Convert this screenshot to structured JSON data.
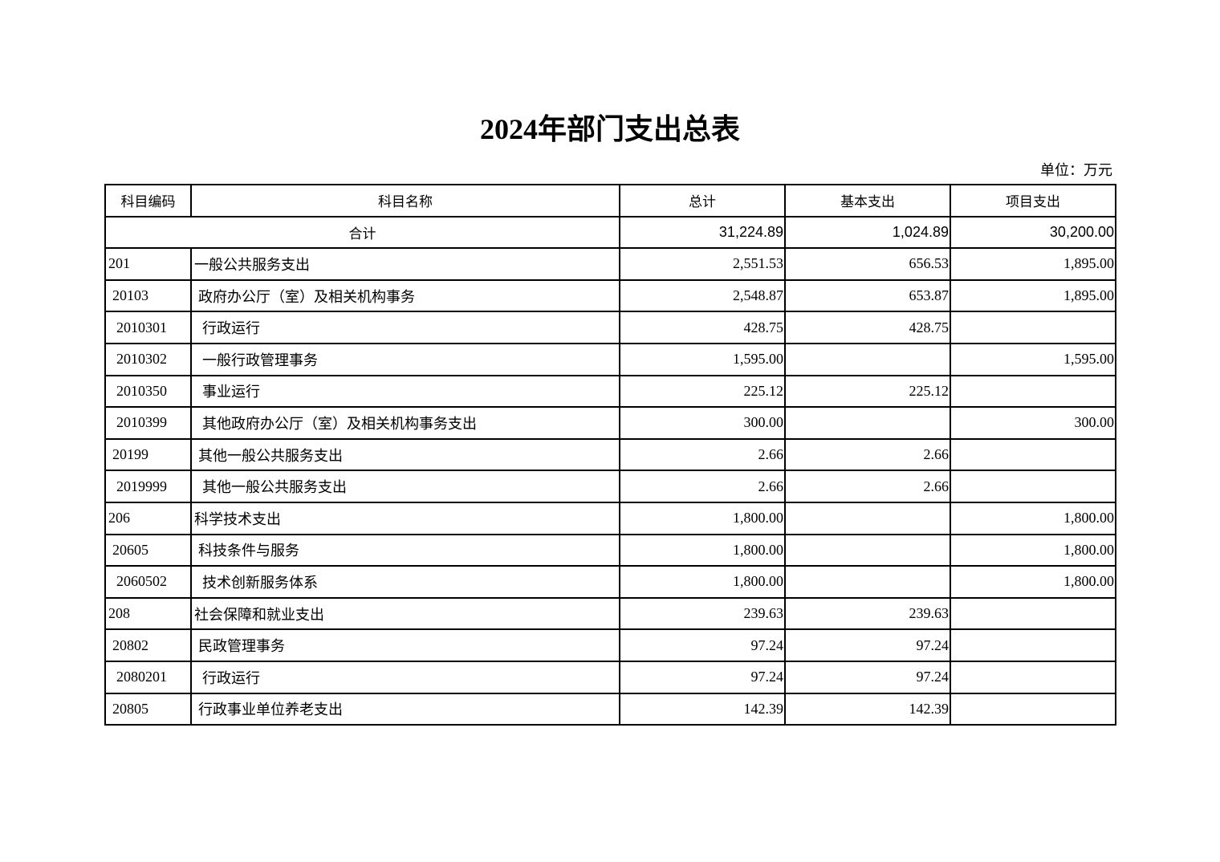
{
  "title": "2024年部门支出总表",
  "unit": "单位：万元",
  "headers": [
    "科目编码",
    "科目名称",
    "总计",
    "基本支出",
    "项目支出"
  ],
  "total": {
    "label": "合计",
    "total": "31,224.89",
    "basic": "1,024.89",
    "project": "30,200.00"
  },
  "rows": [
    {
      "level": 1,
      "code": "201",
      "name": "一般公共服务支出",
      "total": "2,551.53",
      "basic": "656.53",
      "project": "1,895.00"
    },
    {
      "level": 2,
      "code": "20103",
      "name": "政府办公厅（室）及相关机构事务",
      "total": "2,548.87",
      "basic": "653.87",
      "project": "1,895.00"
    },
    {
      "level": 3,
      "code": "2010301",
      "name": "行政运行",
      "total": "428.75",
      "basic": "428.75",
      "project": ""
    },
    {
      "level": 3,
      "code": "2010302",
      "name": "一般行政管理事务",
      "total": "1,595.00",
      "basic": "",
      "project": "1,595.00"
    },
    {
      "level": 3,
      "code": "2010350",
      "name": "事业运行",
      "total": "225.12",
      "basic": "225.12",
      "project": ""
    },
    {
      "level": 3,
      "code": "2010399",
      "name": "其他政府办公厅（室）及相关机构事务支出",
      "total": "300.00",
      "basic": "",
      "project": "300.00"
    },
    {
      "level": 2,
      "code": "20199",
      "name": "其他一般公共服务支出",
      "total": "2.66",
      "basic": "2.66",
      "project": ""
    },
    {
      "level": 3,
      "code": "2019999",
      "name": "其他一般公共服务支出",
      "total": "2.66",
      "basic": "2.66",
      "project": ""
    },
    {
      "level": 1,
      "code": "206",
      "name": "科学技术支出",
      "total": "1,800.00",
      "basic": "",
      "project": "1,800.00"
    },
    {
      "level": 2,
      "code": "20605",
      "name": "科技条件与服务",
      "total": "1,800.00",
      "basic": "",
      "project": "1,800.00"
    },
    {
      "level": 3,
      "code": "2060502",
      "name": "技术创新服务体系",
      "total": "1,800.00",
      "basic": "",
      "project": "1,800.00"
    },
    {
      "level": 1,
      "code": "208",
      "name": "社会保障和就业支出",
      "total": "239.63",
      "basic": "239.63",
      "project": ""
    },
    {
      "level": 2,
      "code": "20802",
      "name": "民政管理事务",
      "total": "97.24",
      "basic": "97.24",
      "project": ""
    },
    {
      "level": 3,
      "code": "2080201",
      "name": "行政运行",
      "total": "97.24",
      "basic": "97.24",
      "project": ""
    },
    {
      "level": 2,
      "code": "20805",
      "name": "行政事业单位养老支出",
      "total": "142.39",
      "basic": "142.39",
      "project": ""
    }
  ]
}
